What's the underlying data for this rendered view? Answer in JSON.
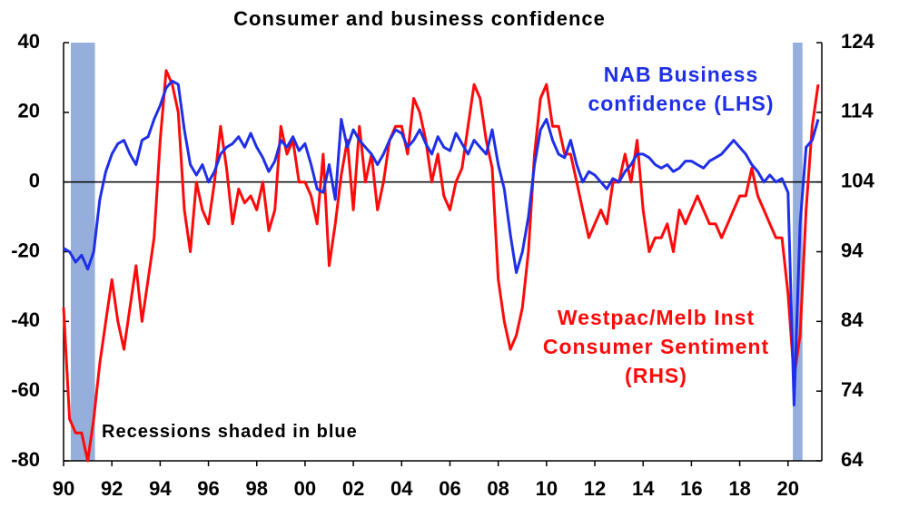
{
  "chart_data": {
    "type": "line",
    "title": "Consumer and business confidence",
    "annotation": "Recessions shaded in blue",
    "recessions": [
      [
        1990.3,
        1991.3
      ],
      [
        2020.2,
        2020.6
      ]
    ],
    "recession_color": "#95aedb",
    "xlim": [
      1990,
      2021.4
    ],
    "xticks": [
      {
        "value": 1990,
        "label": "90"
      },
      {
        "value": 1992,
        "label": "92"
      },
      {
        "value": 1994,
        "label": "94"
      },
      {
        "value": 1996,
        "label": "96"
      },
      {
        "value": 1998,
        "label": "98"
      },
      {
        "value": 2000,
        "label": "00"
      },
      {
        "value": 2002,
        "label": "02"
      },
      {
        "value": 2004,
        "label": "04"
      },
      {
        "value": 2006,
        "label": "06"
      },
      {
        "value": 2008,
        "label": "08"
      },
      {
        "value": 2010,
        "label": "10"
      },
      {
        "value": 2012,
        "label": "12"
      },
      {
        "value": 2014,
        "label": "14"
      },
      {
        "value": 2016,
        "label": "16"
      },
      {
        "value": 2018,
        "label": "18"
      },
      {
        "value": 2020,
        "label": "20"
      }
    ],
    "ylim": [
      -80,
      40
    ],
    "yticks": [
      -80,
      -60,
      -40,
      -20,
      0,
      20,
      40
    ],
    "y2lim": [
      64,
      124
    ],
    "y2ticks": [
      64,
      74,
      84,
      94,
      104,
      114,
      124
    ],
    "x": [
      1990,
      1990.25,
      1990.5,
      1990.75,
      1991,
      1991.25,
      1991.5,
      1991.75,
      1992,
      1992.25,
      1992.5,
      1992.75,
      1993,
      1993.25,
      1993.5,
      1993.75,
      1994,
      1994.25,
      1994.5,
      1994.75,
      1995,
      1995.25,
      1995.5,
      1995.75,
      1996,
      1996.25,
      1996.5,
      1996.75,
      1997,
      1997.25,
      1997.5,
      1997.75,
      1998,
      1998.25,
      1998.5,
      1998.75,
      1999,
      1999.25,
      1999.5,
      1999.75,
      2000,
      2000.25,
      2000.5,
      2000.75,
      2001,
      2001.25,
      2001.5,
      2001.75,
      2002,
      2002.25,
      2002.5,
      2002.75,
      2003,
      2003.25,
      2003.5,
      2003.75,
      2004,
      2004.25,
      2004.5,
      2004.75,
      2005,
      2005.25,
      2005.5,
      2005.75,
      2006,
      2006.25,
      2006.5,
      2006.75,
      2007,
      2007.25,
      2007.5,
      2007.75,
      2008,
      2008.25,
      2008.5,
      2008.75,
      2009,
      2009.25,
      2009.5,
      2009.75,
      2010,
      2010.25,
      2010.5,
      2010.75,
      2011,
      2011.25,
      2011.5,
      2011.75,
      2012,
      2012.25,
      2012.5,
      2012.75,
      2013,
      2013.25,
      2013.5,
      2013.75,
      2014,
      2014.25,
      2014.5,
      2014.75,
      2015,
      2015.25,
      2015.5,
      2015.75,
      2016,
      2016.25,
      2016.5,
      2016.75,
      2017,
      2017.25,
      2017.5,
      2017.75,
      2018,
      2018.25,
      2018.5,
      2018.75,
      2019,
      2019.25,
      2019.5,
      2019.75,
      2020,
      2020.25,
      2020.5,
      2020.75,
      2021,
      2021.25
    ],
    "series": [
      {
        "name": "NAB Business confidence (LHS)",
        "color": "#1f2fe8",
        "values": [
          -19,
          -20,
          -23,
          -21,
          -25,
          -20,
          -5,
          3,
          8,
          11,
          12,
          8,
          5,
          12,
          13,
          18,
          22,
          27,
          29,
          28,
          15,
          5,
          2,
          5,
          0,
          3,
          8,
          10,
          11,
          13,
          10,
          14,
          10,
          7,
          3,
          6,
          12,
          10,
          13,
          9,
          11,
          5,
          -2,
          -3,
          5,
          -5,
          18,
          10,
          15,
          12,
          10,
          8,
          5,
          8,
          12,
          15,
          14,
          10,
          12,
          15,
          11,
          8,
          13,
          10,
          9,
          14,
          11,
          8,
          12,
          10,
          8,
          15,
          5,
          -2,
          -15,
          -26,
          -20,
          -10,
          5,
          15,
          18,
          12,
          8,
          7,
          12,
          5,
          0,
          3,
          2,
          0,
          -2,
          1,
          0,
          3,
          5,
          8,
          8,
          7,
          5,
          4,
          5,
          3,
          4,
          6,
          6,
          5,
          4,
          6,
          7,
          8,
          10,
          12,
          10,
          8,
          5,
          3,
          0,
          2,
          0,
          1,
          -3,
          -64,
          -12,
          10,
          12,
          18
        ]
      },
      {
        "name": "Westpac/Melb Inst Consumer Sentiment (RHS)",
        "color": "#ff0a0a",
        "axis": "y2",
        "values": [
          86,
          70,
          68,
          68,
          64,
          70,
          78,
          84,
          90,
          84,
          80,
          86,
          92,
          84,
          90,
          96,
          110,
          120,
          118,
          114,
          100,
          94,
          104,
          100,
          98,
          104,
          112,
          106,
          98,
          103,
          101,
          102,
          100,
          104,
          97,
          100,
          112,
          108,
          110,
          104,
          104,
          102,
          98,
          108,
          92,
          98,
          105,
          110,
          100,
          112,
          104,
          108,
          100,
          104,
          110,
          112,
          112,
          108,
          116,
          114,
          110,
          104,
          108,
          102,
          100,
          104,
          106,
          112,
          118,
          116,
          110,
          106,
          90,
          84,
          80,
          82,
          86,
          94,
          108,
          116,
          118,
          112,
          112,
          108,
          108,
          104,
          100,
          96,
          98,
          100,
          98,
          104,
          104,
          108,
          104,
          110,
          100,
          94,
          96,
          96,
          98,
          94,
          100,
          98,
          100,
          102,
          100,
          98,
          98,
          96,
          98,
          100,
          102,
          102,
          106,
          102,
          100,
          98,
          96,
          96,
          88,
          76,
          82,
          100,
          112,
          118
        ]
      }
    ]
  }
}
